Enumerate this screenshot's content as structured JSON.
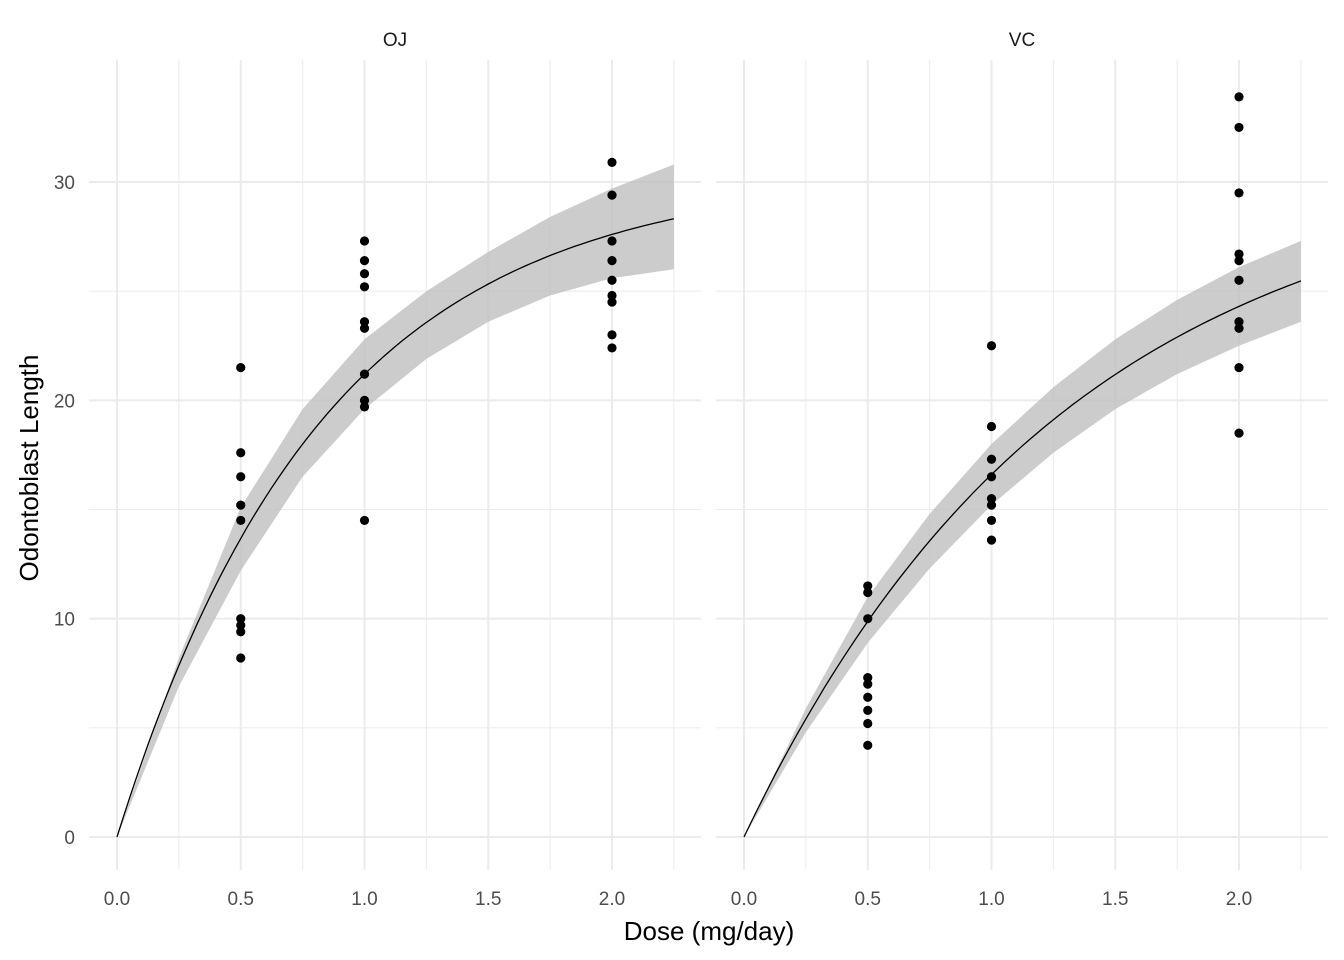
{
  "chart_data": {
    "type": "scatter",
    "title": "",
    "xlabel": "Dose (mg/day)",
    "ylabel": "Odontoblast Length",
    "xlim": [
      -0.1125,
      2.3625
    ],
    "ylim": [
      -1.5,
      35.5
    ],
    "x_ticks": [
      0.0,
      0.5,
      1.0,
      1.5,
      2.0
    ],
    "x_tick_labels": [
      "0.0",
      "0.5",
      "1.0",
      "1.5",
      "2.0"
    ],
    "y_ticks": [
      0,
      10,
      20,
      30
    ],
    "y_tick_labels": [
      "0",
      "10",
      "20",
      "30"
    ],
    "grid": true,
    "legend": "none",
    "point_color": "#000000",
    "line_color": "#000000",
    "band_color": "#bfbfbf",
    "grid_color": "#ebebeb",
    "facets": [
      {
        "label": "OJ",
        "points": [
          {
            "x": 0.5,
            "y": 21.5
          },
          {
            "x": 0.5,
            "y": 17.6
          },
          {
            "x": 0.5,
            "y": 16.5
          },
          {
            "x": 0.5,
            "y": 15.2
          },
          {
            "x": 0.5,
            "y": 14.5
          },
          {
            "x": 0.5,
            "y": 10.0
          },
          {
            "x": 0.5,
            "y": 9.7
          },
          {
            "x": 0.5,
            "y": 9.4
          },
          {
            "x": 0.5,
            "y": 8.2
          },
          {
            "x": 1.0,
            "y": 27.3
          },
          {
            "x": 1.0,
            "y": 26.4
          },
          {
            "x": 1.0,
            "y": 25.8
          },
          {
            "x": 1.0,
            "y": 25.2
          },
          {
            "x": 1.0,
            "y": 23.6
          },
          {
            "x": 1.0,
            "y": 23.3
          },
          {
            "x": 1.0,
            "y": 21.2
          },
          {
            "x": 1.0,
            "y": 20.0
          },
          {
            "x": 1.0,
            "y": 19.7
          },
          {
            "x": 1.0,
            "y": 14.5
          },
          {
            "x": 2.0,
            "y": 30.9
          },
          {
            "x": 2.0,
            "y": 29.4
          },
          {
            "x": 2.0,
            "y": 27.3
          },
          {
            "x": 2.0,
            "y": 26.4
          },
          {
            "x": 2.0,
            "y": 25.5
          },
          {
            "x": 2.0,
            "y": 24.8
          },
          {
            "x": 2.0,
            "y": 24.5
          },
          {
            "x": 2.0,
            "y": 23.0
          },
          {
            "x": 2.0,
            "y": 22.4
          }
        ],
        "fit": {
          "model": "y = a*(1-exp(-b*x))",
          "a": 30.37,
          "b": 1.197,
          "x_range": [
            0,
            2.25
          ]
        },
        "band": {
          "x": [
            0,
            0.25,
            0.5,
            0.75,
            1.0,
            1.25,
            1.5,
            1.75,
            2.0,
            2.25
          ],
          "lower": [
            0,
            6.9,
            12.2,
            16.5,
            19.6,
            21.9,
            23.6,
            24.8,
            25.6,
            26.0
          ],
          "upper": [
            0,
            8.2,
            15.1,
            19.6,
            22.8,
            25.0,
            26.8,
            28.4,
            29.7,
            30.8
          ]
        }
      },
      {
        "label": "VC",
        "points": [
          {
            "x": 0.5,
            "y": 11.5
          },
          {
            "x": 0.5,
            "y": 11.2
          },
          {
            "x": 0.5,
            "y": 10.0
          },
          {
            "x": 0.5,
            "y": 7.3
          },
          {
            "x": 0.5,
            "y": 7.0
          },
          {
            "x": 0.5,
            "y": 6.4
          },
          {
            "x": 0.5,
            "y": 5.8
          },
          {
            "x": 0.5,
            "y": 5.2
          },
          {
            "x": 0.5,
            "y": 4.2
          },
          {
            "x": 1.0,
            "y": 22.5
          },
          {
            "x": 1.0,
            "y": 18.8
          },
          {
            "x": 1.0,
            "y": 17.3
          },
          {
            "x": 1.0,
            "y": 16.5
          },
          {
            "x": 1.0,
            "y": 15.5
          },
          {
            "x": 1.0,
            "y": 15.2
          },
          {
            "x": 1.0,
            "y": 14.5
          },
          {
            "x": 1.0,
            "y": 13.6
          },
          {
            "x": 2.0,
            "y": 33.9
          },
          {
            "x": 2.0,
            "y": 32.5
          },
          {
            "x": 2.0,
            "y": 29.5
          },
          {
            "x": 2.0,
            "y": 26.7
          },
          {
            "x": 2.0,
            "y": 26.4
          },
          {
            "x": 2.0,
            "y": 25.5
          },
          {
            "x": 2.0,
            "y": 23.6
          },
          {
            "x": 2.0,
            "y": 23.3
          },
          {
            "x": 2.0,
            "y": 21.5
          },
          {
            "x": 2.0,
            "y": 18.5
          }
        ],
        "fit": {
          "model": "y = a*(1-exp(-b*x))",
          "a": 30.97,
          "b": 0.768,
          "x_range": [
            0,
            2.25
          ]
        },
        "band": {
          "x": [
            0,
            0.25,
            0.5,
            0.75,
            1.0,
            1.25,
            1.5,
            1.75,
            2.0,
            2.25
          ],
          "lower": [
            0,
            4.8,
            8.9,
            12.3,
            15.2,
            17.6,
            19.6,
            21.2,
            22.5,
            23.6
          ],
          "upper": [
            0,
            5.9,
            11.0,
            14.8,
            18.0,
            20.6,
            22.8,
            24.6,
            26.1,
            27.3
          ]
        }
      }
    ]
  }
}
